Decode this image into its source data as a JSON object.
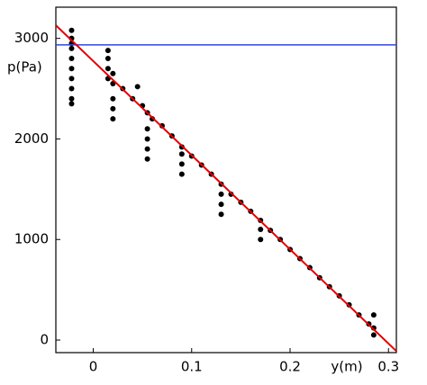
{
  "chart_data": {
    "type": "scatter",
    "x_label": "y(m)",
    "y_label": "p(Pa)",
    "x": [
      -0.022,
      -0.022,
      -0.022,
      -0.022,
      -0.022,
      -0.022,
      -0.022,
      -0.022,
      -0.022,
      -0.022,
      0.015,
      0.015,
      0.015,
      0.015,
      0.02,
      0.02,
      0.02,
      0.02,
      0.02,
      0.03,
      0.04,
      0.045,
      0.05,
      0.055,
      0.055,
      0.055,
      0.055,
      0.055,
      0.06,
      0.07,
      0.08,
      0.09,
      0.09,
      0.09,
      0.09,
      0.1,
      0.11,
      0.12,
      0.13,
      0.13,
      0.13,
      0.13,
      0.14,
      0.15,
      0.16,
      0.17,
      0.17,
      0.17,
      0.18,
      0.19,
      0.2,
      0.21,
      0.22,
      0.23,
      0.24,
      0.25,
      0.26,
      0.27,
      0.28,
      0.285,
      0.285,
      0.285
    ],
    "values": [
      3080,
      3000,
      2950,
      2900,
      2800,
      2700,
      2600,
      2500,
      2400,
      2350,
      2880,
      2800,
      2700,
      2600,
      2650,
      2550,
      2400,
      2300,
      2200,
      2500,
      2400,
      2520,
      2330,
      2260,
      2100,
      2000,
      1900,
      1800,
      2200,
      2130,
      2030,
      1920,
      1850,
      1750,
      1650,
      1830,
      1740,
      1650,
      1550,
      1450,
      1350,
      1250,
      1450,
      1370,
      1280,
      1190,
      1100,
      1000,
      1090,
      1000,
      900,
      810,
      720,
      620,
      530,
      440,
      350,
      250,
      160,
      120,
      250,
      50
    ],
    "color": "#000000",
    "fit_line": {
      "x": [
        -0.038,
        0.308
      ],
      "y": [
        3130,
        -110
      ],
      "color": "#e00000"
    },
    "reference_line": {
      "y": 2935,
      "color": "#3344dd"
    },
    "xlim": [
      -0.038,
      0.308
    ],
    "ylim": [
      -125,
      3310
    ],
    "xticks": [
      0,
      0.1,
      0.2,
      0.3
    ],
    "yticks": [
      0,
      1000,
      2000,
      3000
    ]
  }
}
